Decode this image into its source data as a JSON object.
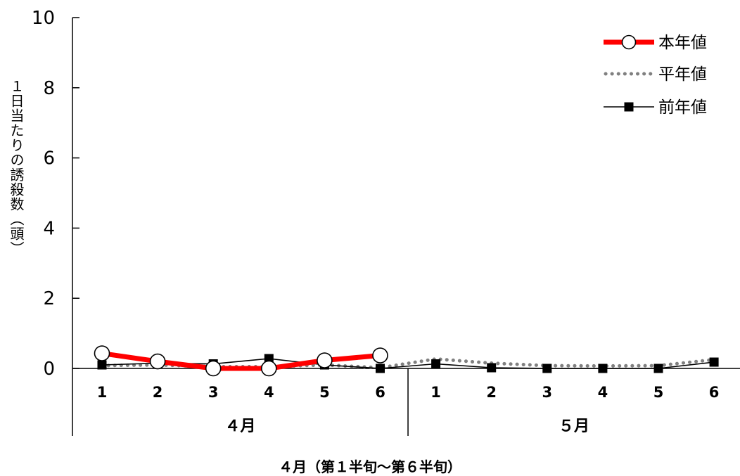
{
  "chart_data": {
    "type": "line",
    "ylabel": "１日当たりの誘殺数（頭）",
    "xlabel": "４月（第１半旬～第６半旬）",
    "ylim": [
      0,
      10
    ],
    "yticks": [
      "0",
      "2",
      "4",
      "6",
      "8",
      "10"
    ],
    "categories": [
      "1",
      "2",
      "3",
      "4",
      "5",
      "6",
      "1",
      "2",
      "3",
      "4",
      "5",
      "6"
    ],
    "groups": [
      {
        "label": "４月",
        "count": 6
      },
      {
        "label": "５月",
        "count": 6
      }
    ],
    "legend_position": "top-right",
    "grid": false,
    "series": [
      {
        "name": "本年値",
        "color": "#ff0000",
        "style": "thick-line-open-circle",
        "values": [
          0.43,
          0.2,
          0.0,
          0.0,
          0.23,
          0.37,
          null,
          null,
          null,
          null,
          null,
          null
        ]
      },
      {
        "name": "平年値",
        "color": "#808080",
        "style": "dotted",
        "values": [
          0.08,
          0.1,
          0.05,
          0.05,
          0.1,
          0.02,
          0.27,
          0.15,
          0.08,
          0.07,
          0.08,
          0.25
        ]
      },
      {
        "name": "前年値",
        "color": "#000000",
        "style": "thin-line-filled-square",
        "values": [
          0.1,
          0.15,
          0.13,
          0.28,
          0.1,
          0.0,
          0.13,
          0.02,
          0.0,
          0.0,
          0.0,
          0.18
        ]
      }
    ]
  }
}
